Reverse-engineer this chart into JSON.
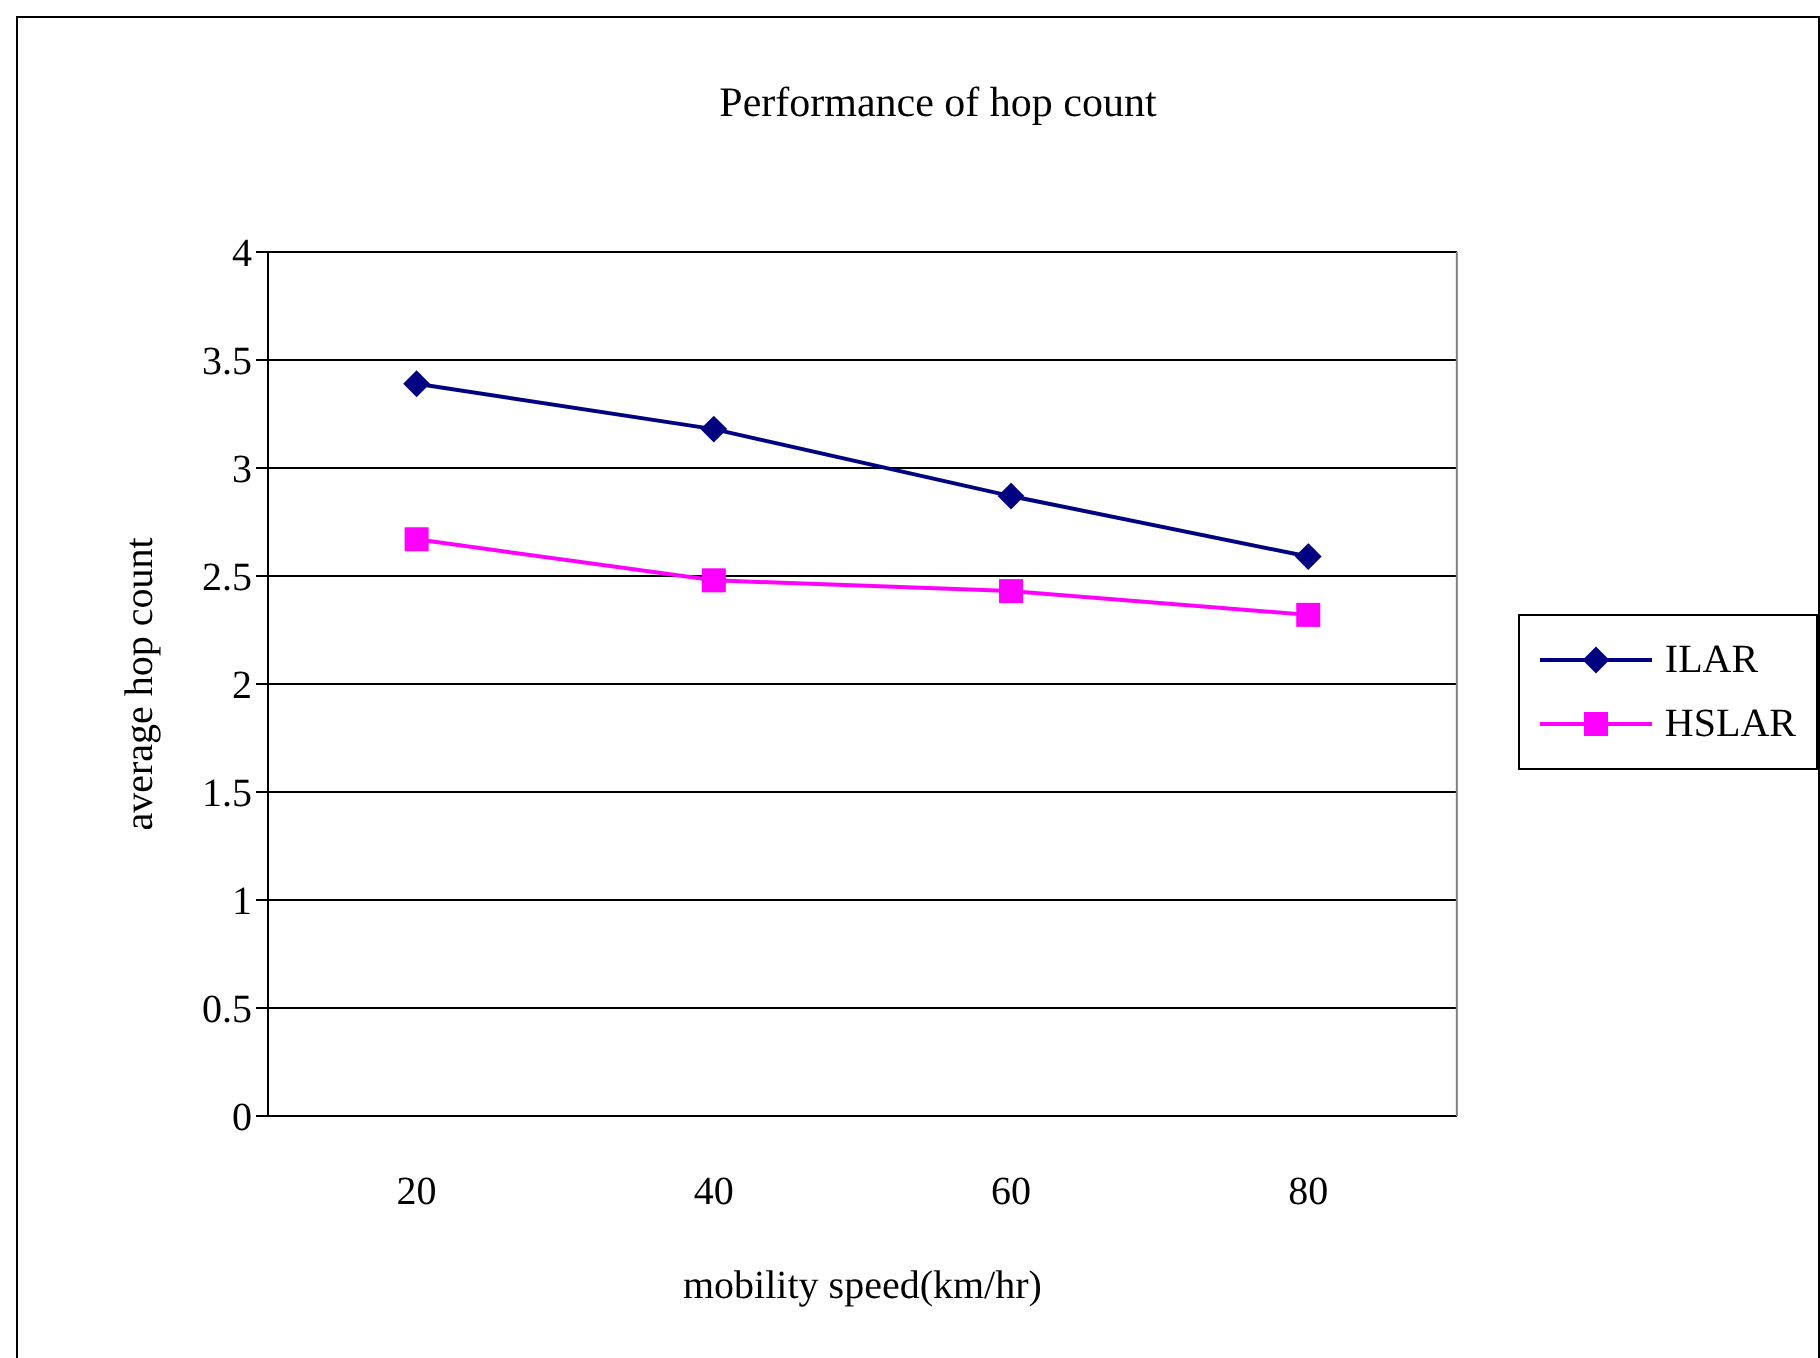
{
  "chart_data": {
    "type": "line",
    "title": "Performance of hop count",
    "xlabel": "mobility speed(km/hr)",
    "ylabel": "average hop count",
    "categories": [
      "20",
      "40",
      "60",
      "80"
    ],
    "series": [
      {
        "name": "ILAR",
        "color": "#000080",
        "marker": "diamond",
        "values": [
          3.39,
          3.18,
          2.87,
          2.59
        ]
      },
      {
        "name": "HSLAR",
        "color": "#ff00ff",
        "marker": "square",
        "values": [
          2.67,
          2.48,
          2.43,
          2.32
        ]
      }
    ],
    "ylim": [
      0,
      4
    ],
    "yticks": [
      0,
      0.5,
      1,
      1.5,
      2,
      2.5,
      3,
      3.5,
      4
    ],
    "grid": "y",
    "legend": "right",
    "line_style": "solid"
  }
}
